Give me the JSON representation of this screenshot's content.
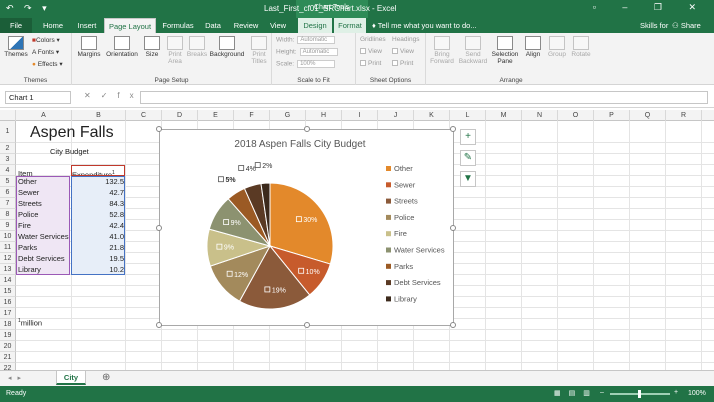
{
  "title_bar": {
    "quick_access": "↶ ↷ ▾",
    "file_title": "Last_First_cf01_SRChart.xlsx - Excel",
    "context_label": "Chart Tools",
    "window_controls": "▫ – ❐ ✕"
  },
  "tabs": [
    "File",
    "Home",
    "Insert",
    "Page Layout",
    "Formulas",
    "Data",
    "Review",
    "View",
    "Design",
    "Format"
  ],
  "tell_me": "Tell me what you want to do...",
  "skills": "Skills for Success",
  "share": "Share",
  "ribbon": {
    "themes": {
      "themes_btn": "Themes",
      "colors": "Colors",
      "fonts": "Fonts",
      "effects": "Effects",
      "label": "Themes"
    },
    "page_setup": {
      "buttons": [
        "Margins",
        "Orientation",
        "Size",
        "Print Area",
        "Breaks",
        "Background",
        "Print Titles"
      ],
      "label": "Page Setup"
    },
    "scale": {
      "width_label": "Width:",
      "height_label": "Height:",
      "scale_label": "Scale:",
      "width_val": "Automatic",
      "height_val": "Automatic",
      "scale_val": "100%",
      "label": "Scale to Fit"
    },
    "sheet_options": {
      "gridlines": "Gridlines",
      "headings": "Headings",
      "view": "View",
      "print": "Print",
      "label": "Sheet Options"
    },
    "arrange": {
      "buttons": [
        "Bring Forward",
        "Send Backward",
        "Selection Pane",
        "Align",
        "Group",
        "Rotate"
      ],
      "label": "Arrange"
    }
  },
  "formula_bar": {
    "name_box": "Chart 1",
    "fx": "fx",
    "formula": ""
  },
  "columns": [
    "A",
    "B",
    "C",
    "D",
    "E",
    "F",
    "G",
    "H",
    "I",
    "J",
    "K",
    "L",
    "M",
    "N",
    "O",
    "P",
    "Q",
    "R"
  ],
  "rows": [
    "1",
    "2",
    "3",
    "4",
    "5",
    "6",
    "7",
    "8",
    "9",
    "10",
    "11",
    "12",
    "13",
    "14",
    "15",
    "16",
    "17",
    "18",
    "19",
    "20",
    "21",
    "22"
  ],
  "sheet": {
    "title": "Aspen Falls",
    "subtitle": "City Budget",
    "header_item": "Item",
    "header_exp": "Expenditure",
    "header_sup": "1",
    "items": [
      {
        "name": "Other",
        "value": "132.5"
      },
      {
        "name": "Sewer",
        "value": "42.7"
      },
      {
        "name": "Streets",
        "value": "84.3"
      },
      {
        "name": "Police",
        "value": "52.8"
      },
      {
        "name": "Fire",
        "value": "42.4"
      },
      {
        "name": "Water Services",
        "value": "41.0"
      },
      {
        "name": "Parks",
        "value": "21.8"
      },
      {
        "name": "Debt Services",
        "value": "19.5"
      },
      {
        "name": "Library",
        "value": "10.2"
      }
    ],
    "footnote_sup": "1",
    "footnote": "million"
  },
  "chart_data": {
    "type": "pie",
    "title": "2018 Aspen Falls City Budget",
    "categories": [
      "Other",
      "Sewer",
      "Streets",
      "Police",
      "Fire",
      "Water Services",
      "Parks",
      "Debt Services",
      "Library"
    ],
    "values": [
      132.5,
      42.7,
      84.3,
      52.8,
      42.4,
      41.0,
      21.8,
      19.5,
      10.2
    ],
    "data_labels": [
      "30%",
      "10%",
      "19%",
      "12%",
      "9%",
      "9%",
      "5%",
      "4%",
      "2%"
    ],
    "colors": [
      "#e3892b",
      "#c75b2c",
      "#8b5a3a",
      "#a38a5c",
      "#c9c08a",
      "#8c9270",
      "#9b5a24",
      "#5a3a24",
      "#3c2a1c"
    ],
    "legend_position": "right"
  },
  "sheet_tab": "City",
  "status": {
    "ready": "Ready",
    "zoom": "100%"
  }
}
